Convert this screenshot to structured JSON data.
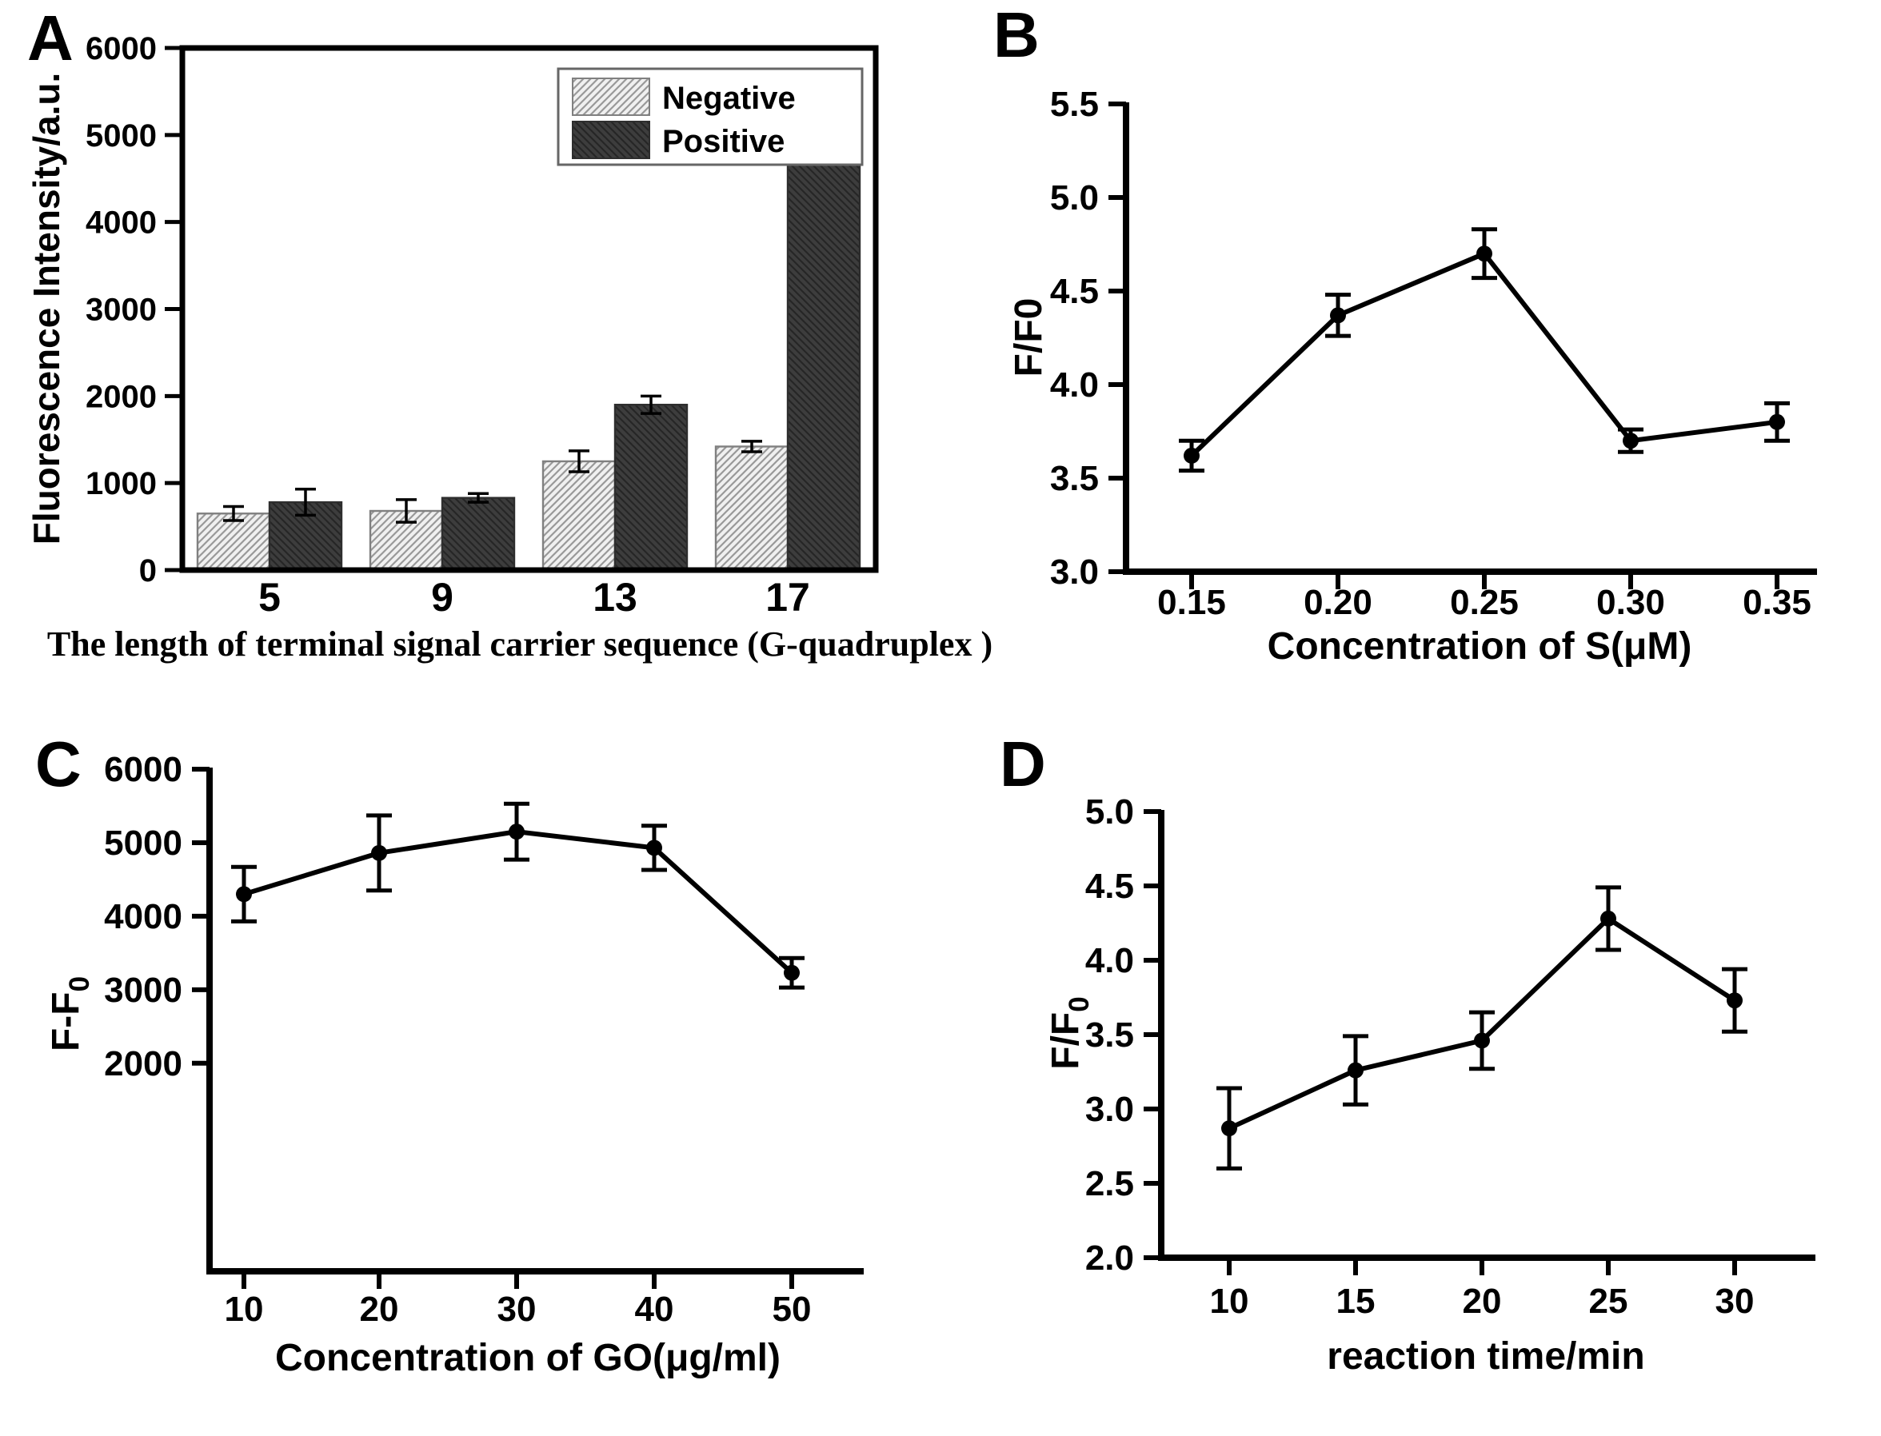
{
  "figure": {
    "background": "#ffffff",
    "ink_color": "#000000",
    "negative_bar_fill": "#f0f0f0",
    "negative_hatch_color": "#999999",
    "positive_bar_fill": "#3d3d3d",
    "positive_hatch_color": "#262626"
  },
  "chart_data": [
    {
      "panel": "A",
      "type": "bar",
      "title": "",
      "xlabel": "The length of terminal signal carrier sequence (G-quadruplex )",
      "ylabel": "Fluorescence Intensity/a.u.",
      "ylabel_sub": "",
      "categories": [
        "5",
        "9",
        "13",
        "17"
      ],
      "series": [
        {
          "name": "Negative",
          "style": "light-hatch",
          "values": [
            650,
            680,
            1250,
            1420
          ],
          "errors": [
            80,
            130,
            120,
            60
          ]
        },
        {
          "name": "Positive",
          "style": "dark",
          "values": [
            780,
            830,
            1900,
            5270
          ],
          "errors": [
            150,
            50,
            100,
            90
          ]
        }
      ],
      "ylim": [
        0,
        6000
      ],
      "yticks": [
        0,
        1000,
        2000,
        3000,
        4000,
        5000,
        6000
      ],
      "ytick_labels": [
        "0",
        "1000",
        "2000",
        "3000",
        "4000",
        "5000",
        "6000"
      ],
      "legend": {
        "entries": [
          "Negative",
          "Positive"
        ],
        "position": "top-right"
      },
      "frame": "box",
      "grid": false
    },
    {
      "panel": "B",
      "type": "line",
      "title": "",
      "xlabel": "Concentration of S(μM)",
      "ylabel": "F/F0",
      "ylabel_sub": "",
      "x": [
        0.15,
        0.2,
        0.25,
        0.3,
        0.35
      ],
      "xtick_labels": [
        "0.15",
        "0.20",
        "0.25",
        "0.30",
        "0.35"
      ],
      "y": [
        3.62,
        4.37,
        4.7,
        3.7,
        3.8
      ],
      "yerr": [
        0.08,
        0.11,
        0.13,
        0.06,
        0.1
      ],
      "ylim": [
        3.0,
        5.5
      ],
      "yticks": [
        3.0,
        3.5,
        4.0,
        4.5,
        5.0,
        5.5
      ],
      "ytick_labels": [
        "3.0",
        "3.5",
        "4.0",
        "4.5",
        "5.0",
        "5.5"
      ],
      "frame": "L",
      "grid": false,
      "legend": null
    },
    {
      "panel": "C",
      "type": "line",
      "title": "",
      "xlabel": "Concentration of GO(μg/ml)",
      "ylabel": "F-F",
      "ylabel_sub": "0",
      "x": [
        10,
        20,
        30,
        40,
        50
      ],
      "xtick_labels": [
        "10",
        "20",
        "30",
        "40",
        "50"
      ],
      "y": [
        4300,
        4860,
        5150,
        4930,
        3230
      ],
      "yerr": [
        370,
        510,
        380,
        300,
        200
      ],
      "ylim": [
        -830,
        6000
      ],
      "yticks": [
        2000,
        3000,
        4000,
        5000,
        6000
      ],
      "ytick_labels": [
        "2000",
        "3000",
        "4000",
        "5000",
        "6000"
      ],
      "frame": "L",
      "grid": false,
      "legend": null
    },
    {
      "panel": "D",
      "type": "line",
      "title": "",
      "xlabel": "reaction time/min",
      "ylabel": "F/F",
      "ylabel_sub": "0",
      "x": [
        10,
        15,
        20,
        25,
        30
      ],
      "xtick_labels": [
        "10",
        "15",
        "20",
        "25",
        "30"
      ],
      "y": [
        2.87,
        3.26,
        3.46,
        4.28,
        3.73
      ],
      "yerr": [
        0.27,
        0.23,
        0.19,
        0.21,
        0.21
      ],
      "ylim": [
        2.0,
        5.0
      ],
      "yticks": [
        2.0,
        2.5,
        3.0,
        3.5,
        4.0,
        4.5,
        5.0
      ],
      "ytick_labels": [
        "2.0",
        "2.5",
        "3.0",
        "3.5",
        "4.0",
        "4.5",
        "5.0"
      ],
      "frame": "L",
      "grid": false,
      "legend": null
    }
  ]
}
